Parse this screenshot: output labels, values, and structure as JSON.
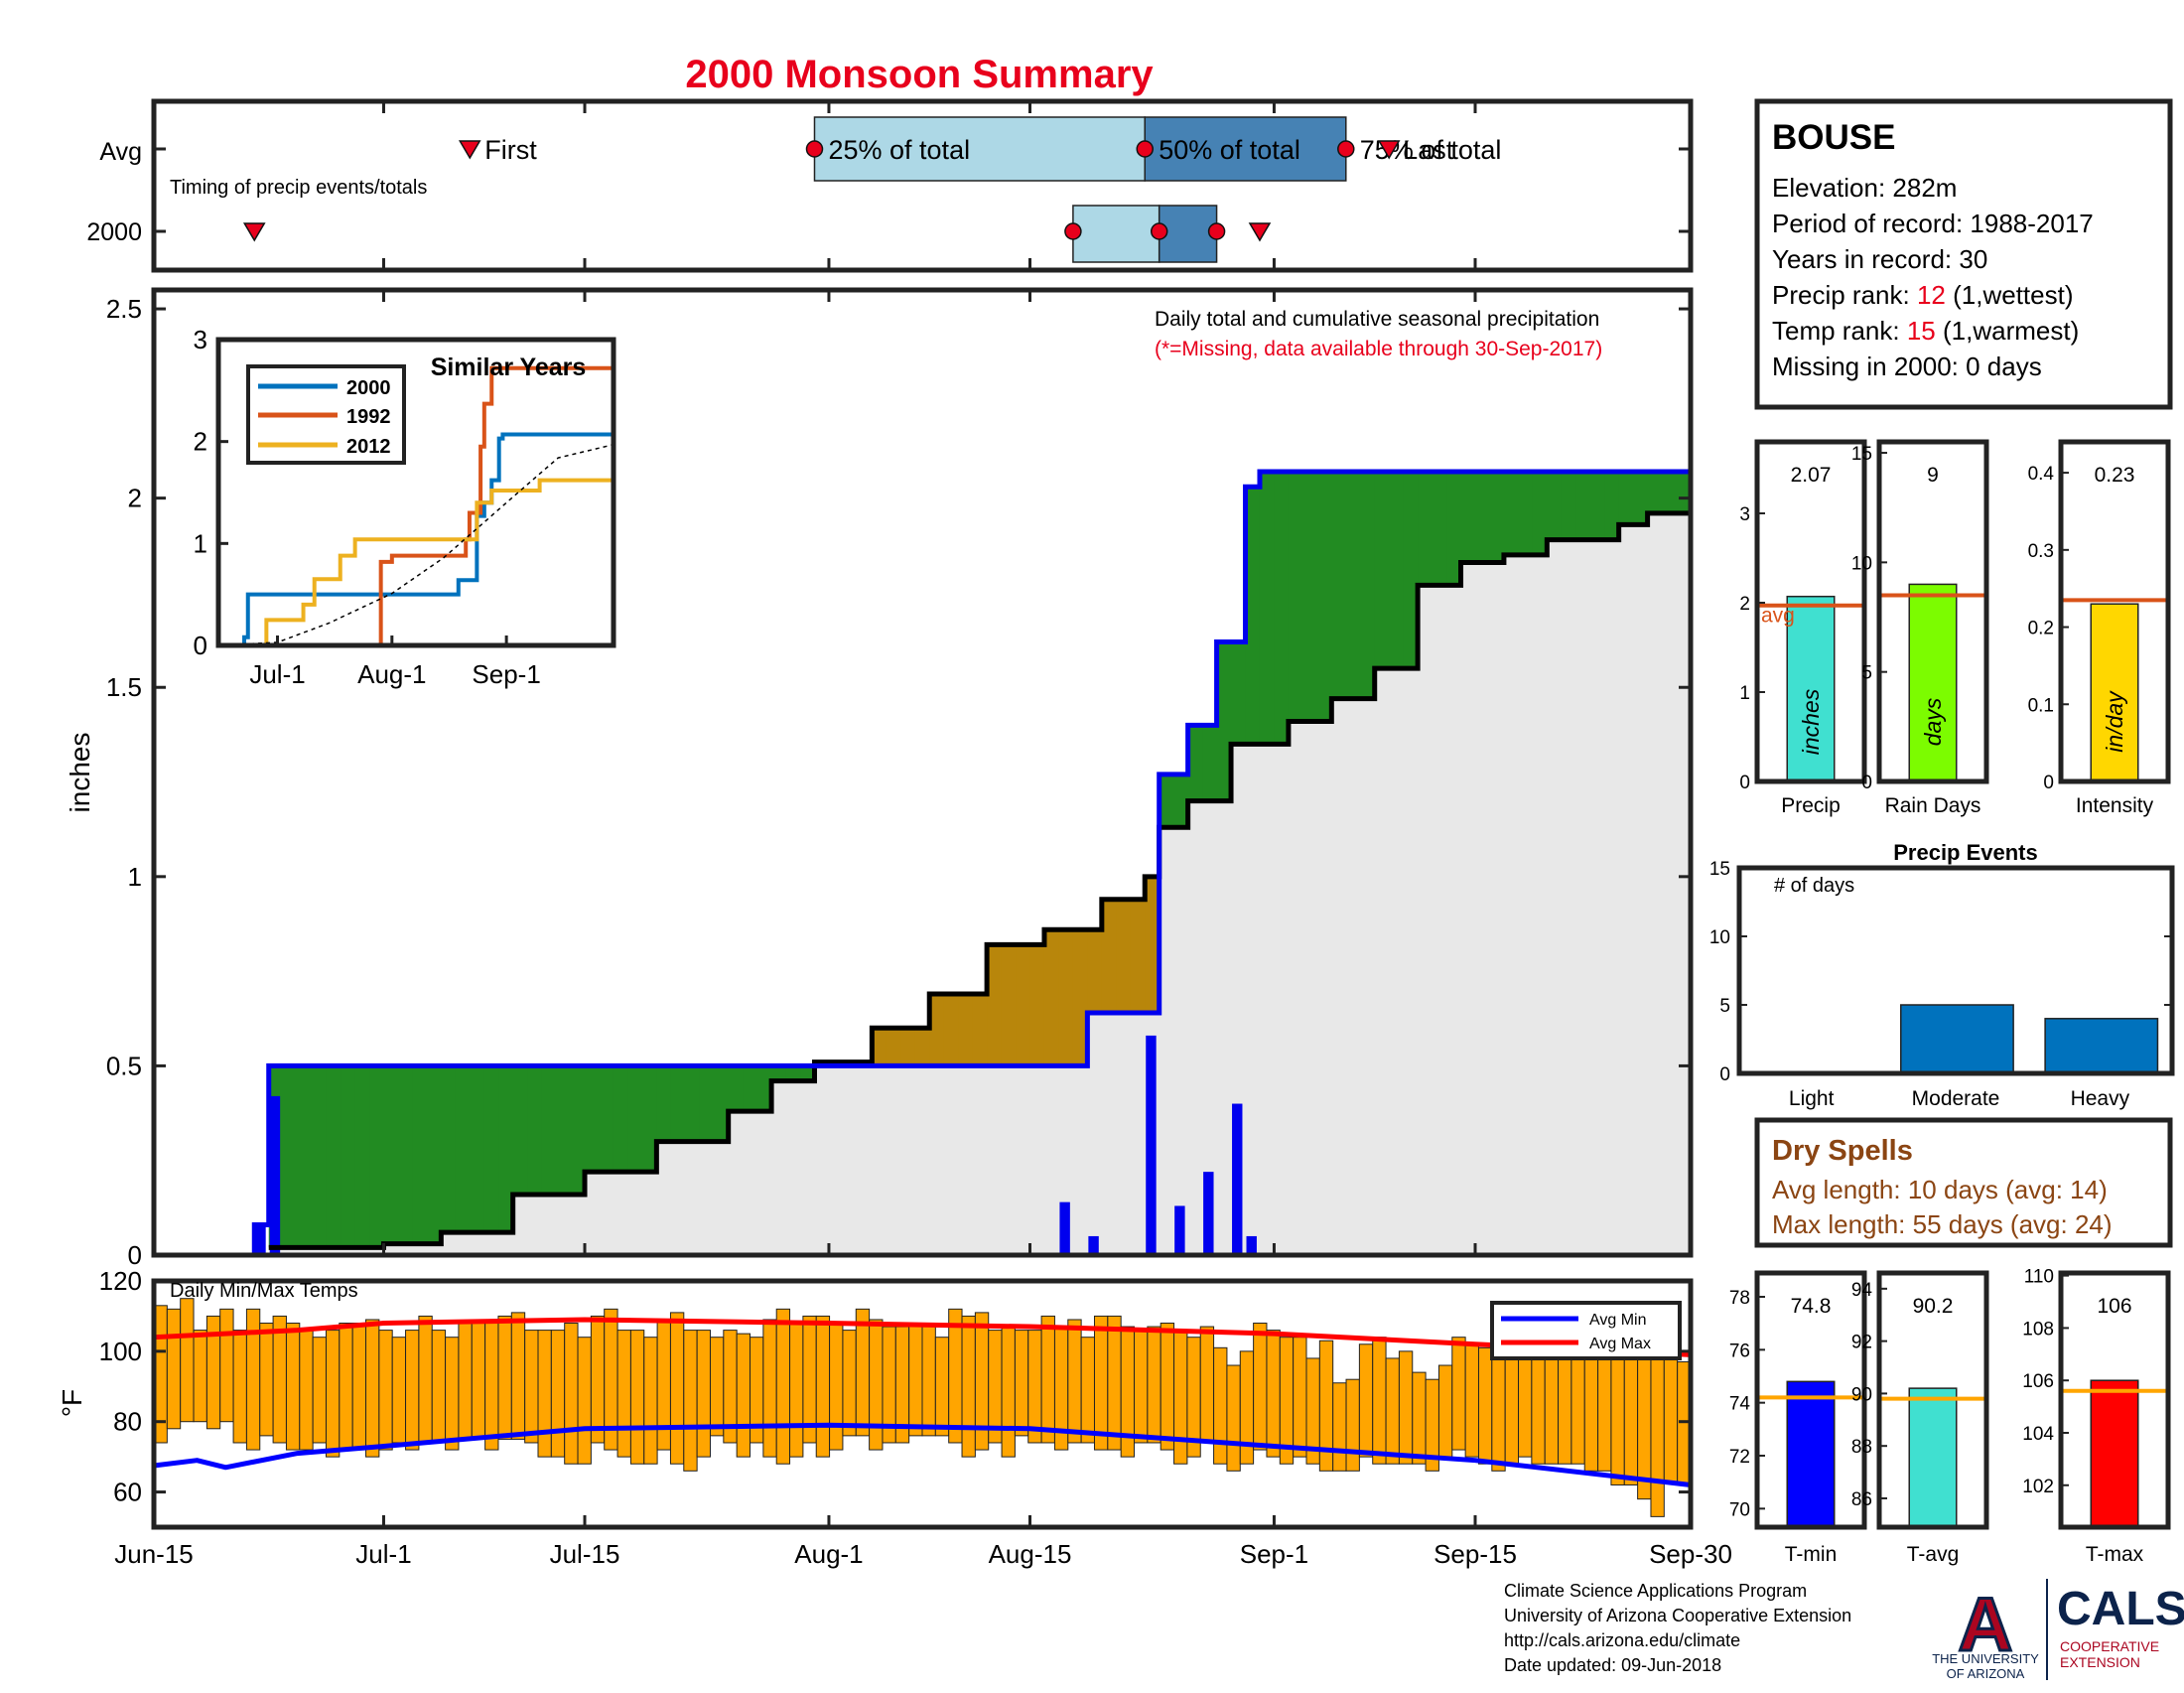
{
  "title": "2000 Monsoon Summary",
  "x_tick_labels": [
    "Jun-15",
    "Jul-1",
    "Jul-15",
    "Aug-1",
    "Aug-15",
    "Sep-1",
    "Sep-15",
    "Sep-30"
  ],
  "timing": {
    "row_labels": [
      "Avg",
      "2000"
    ],
    "caption": "Timing of precip events/totals",
    "avg_labels": {
      "first": "First",
      "p25": "25% of total",
      "p50": "50% of total",
      "p75": "75% of total",
      "last": "Last"
    },
    "avg": {
      "first": "Jul-7",
      "p25": "Jul-31",
      "p50": "Aug-23",
      "p75": "Sep-6",
      "last": "Sep-9"
    },
    "year": {
      "first": "Jun-22",
      "p25": "Aug-18",
      "p50": "Aug-24",
      "p75": "Aug-28",
      "last": "Aug-31"
    }
  },
  "station": {
    "name": "BOUSE",
    "elevation": "Elevation: 282m",
    "period": "Period of record: 1988-2017",
    "years": "Years in record: 30",
    "precip_rank_label": "Precip rank:",
    "precip_rank_value": "12",
    "precip_rank_note": "(1,wettest)",
    "temp_rank_label": "Temp rank:",
    "temp_rank_value": "15",
    "temp_rank_note": "(1,warmest)",
    "missing": "Missing in 2000: 0 days"
  },
  "main_annotations": {
    "line1": "Daily total and cumulative seasonal precipitation",
    "line2": "(*=Missing, data available through 30-Sep-2017)"
  },
  "chart_data": [
    {
      "type": "area",
      "name": "cumulative precipitation",
      "ylabel": "inches",
      "ylim": [
        0,
        2.55
      ],
      "y_ticks": [
        "0",
        "0.5",
        "1",
        "1.5",
        "2",
        "2.5"
      ],
      "x_range": [
        "Jun-15",
        "Sep-30"
      ],
      "cumulative_2000": {
        "dates": [
          "Jun-22",
          "Jun-23",
          "Aug-17",
          "Aug-19",
          "Aug-24",
          "Aug-26",
          "Aug-28",
          "Aug-30",
          "Aug-31"
        ],
        "values": [
          0.08,
          0.5,
          0.5,
          0.64,
          1.27,
          1.4,
          1.62,
          2.03,
          2.07
        ]
      },
      "cumulative_avg": {
        "dates": [
          "Jun-23",
          "Jul-1",
          "Jul-5",
          "Jul-10",
          "Jul-15",
          "Jul-20",
          "Jul-25",
          "Jul-28",
          "Jul-31",
          "Aug-4",
          "Aug-8",
          "Aug-12",
          "Aug-16",
          "Aug-20",
          "Aug-23",
          "Aug-24",
          "Aug-26",
          "Aug-29",
          "Sep-2",
          "Sep-5",
          "Sep-8",
          "Sep-11",
          "Sep-14",
          "Sep-17",
          "Sep-20",
          "Sep-25",
          "Sep-27",
          "Sep-30"
        ],
        "values": [
          0.02,
          0.03,
          0.06,
          0.16,
          0.22,
          0.3,
          0.38,
          0.46,
          0.51,
          0.6,
          0.69,
          0.82,
          0.86,
          0.94,
          1.0,
          1.13,
          1.2,
          1.35,
          1.41,
          1.47,
          1.55,
          1.77,
          1.83,
          1.85,
          1.89,
          1.93,
          1.96,
          1.97
        ]
      },
      "daily_2000": {
        "dates": [
          "Jun-22",
          "Jun-23",
          "Aug-17",
          "Aug-19",
          "Aug-23",
          "Aug-25",
          "Aug-27",
          "Aug-29",
          "Aug-30"
        ],
        "values": [
          0.08,
          0.42,
          0.14,
          0.05,
          0.58,
          0.13,
          0.22,
          0.4,
          0.05
        ]
      },
      "fill_colors": {
        "above_avg": "#228B22",
        "below_avg": "#B8860B",
        "background": "#E8E8E8"
      }
    },
    {
      "type": "line",
      "name": "Similar Years",
      "title": "Similar Years",
      "x_ticks": [
        "Jul-1",
        "Aug-1",
        "Sep-1"
      ],
      "ylim": [
        0,
        3
      ],
      "y_ticks": [
        "0",
        "1",
        "2",
        "3"
      ],
      "series": [
        {
          "name": "2000",
          "color": "#0072BD",
          "dates": [
            "Jun-15",
            "Jun-22",
            "Jun-23",
            "Aug-17",
            "Aug-19",
            "Aug-24",
            "Aug-26",
            "Aug-28",
            "Aug-30",
            "Aug-31",
            "Sep-30"
          ],
          "values": [
            0,
            0.08,
            0.5,
            0.5,
            0.64,
            1.27,
            1.4,
            1.62,
            2.03,
            2.07,
            2.07
          ]
        },
        {
          "name": "1992",
          "color": "#D95319",
          "dates": [
            "Jun-15",
            "Jul-28",
            "Jul-29",
            "Aug-1",
            "Aug-21",
            "Aug-22",
            "Aug-25",
            "Aug-26",
            "Aug-28",
            "Sep-30"
          ],
          "values": [
            0,
            0,
            0.82,
            0.88,
            1.04,
            1.3,
            1.95,
            2.37,
            2.72,
            2.72
          ]
        },
        {
          "name": "2012",
          "color": "#EDB120",
          "dates": [
            "Jun-15",
            "Jun-28",
            "Jul-8",
            "Jul-11",
            "Jul-18",
            "Jul-22",
            "Aug-21",
            "Aug-24",
            "Aug-28",
            "Sep-5",
            "Sep-10",
            "Sep-30"
          ],
          "values": [
            0,
            0.25,
            0.4,
            0.65,
            0.88,
            1.04,
            1.04,
            1.4,
            1.52,
            1.52,
            1.62,
            1.62
          ]
        },
        {
          "name": "average",
          "color": "#000000",
          "dates": [
            "Jun-15",
            "Jul-1",
            "Jul-15",
            "Aug-1",
            "Aug-15",
            "Sep-1",
            "Sep-15",
            "Sep-30"
          ],
          "values": [
            0,
            0.03,
            0.22,
            0.51,
            0.86,
            1.4,
            1.84,
            1.97
          ]
        }
      ]
    },
    {
      "type": "bar",
      "name": "season totals",
      "panels": [
        {
          "category": "Precip",
          "value_label": "2.07",
          "value": 2.07,
          "avg": 1.97,
          "unit": "inches",
          "ylim": [
            0,
            3.8
          ],
          "ticks": [
            "0",
            "1",
            "2",
            "3"
          ],
          "color": "#40E0D0",
          "avg_label": "avg"
        },
        {
          "category": "Rain Days",
          "value_label": "9",
          "value": 9,
          "avg": 8.5,
          "unit": "days",
          "ylim": [
            0,
            15.5
          ],
          "ticks": [
            "0",
            "5",
            "10",
            "15"
          ],
          "color": "#7CFC00"
        },
        {
          "category": "Intensity",
          "value_label": "0.23",
          "value": 0.23,
          "avg": 0.235,
          "unit": "in/day",
          "ylim": [
            0,
            0.44
          ],
          "ticks": [
            "0",
            "0.1",
            "0.2",
            "0.3",
            "0.4"
          ],
          "color": "#FFD700"
        }
      ]
    },
    {
      "type": "bar",
      "name": "Precip Events",
      "title": "Precip Events",
      "ylabel_inside": "# of days",
      "categories": [
        "Light",
        "Moderate",
        "Heavy"
      ],
      "values": [
        0,
        5,
        4
      ],
      "ylim": [
        0,
        15
      ],
      "y_ticks": [
        "0",
        "5",
        "10",
        "15"
      ],
      "color": "#0072BD"
    },
    {
      "type": "bar",
      "name": "Daily Min/Max Temps",
      "title": "Daily Min/Max Temps",
      "ylabel": "°F",
      "ylim": [
        50,
        120
      ],
      "y_ticks": [
        "60",
        "80",
        "100",
        "120"
      ],
      "legend": [
        "Avg Min",
        "Avg Max"
      ],
      "bar_color": "#FFA500",
      "tmax": [
        113,
        112,
        115,
        106,
        110,
        112,
        106,
        112,
        108,
        110,
        108,
        106,
        104,
        106,
        108,
        108,
        109,
        106,
        104,
        106,
        110,
        106,
        104,
        108,
        108,
        108,
        110,
        111,
        106,
        106,
        106,
        108,
        104,
        110,
        112,
        106,
        106,
        104,
        109,
        111,
        106,
        106,
        104,
        106,
        105,
        104,
        109,
        112,
        108,
        110,
        110,
        108,
        106,
        112,
        109,
        107,
        107,
        108,
        108,
        104,
        112,
        110,
        111,
        106,
        107,
        106,
        106,
        110,
        107,
        109,
        104,
        110,
        110,
        107,
        106,
        107,
        108,
        106,
        104,
        107,
        101,
        96,
        100,
        108,
        106,
        104,
        104,
        98,
        103,
        91,
        92,
        102,
        104,
        98,
        100,
        94,
        92,
        96,
        104,
        102,
        101,
        104,
        100,
        103,
        100,
        98,
        103,
        108,
        110,
        104,
        103,
        102,
        100,
        100,
        98,
        97
      ],
      "tmin": [
        74,
        78,
        80,
        80,
        78,
        80,
        74,
        72,
        76,
        74,
        72,
        72,
        74,
        70,
        72,
        72,
        70,
        72,
        74,
        72,
        74,
        74,
        72,
        75,
        75,
        72,
        75,
        75,
        74,
        70,
        70,
        68,
        68,
        74,
        72,
        70,
        68,
        68,
        72,
        68,
        66,
        70,
        76,
        74,
        70,
        74,
        70,
        68,
        70,
        74,
        70,
        72,
        76,
        76,
        72,
        74,
        74,
        76,
        76,
        76,
        74,
        70,
        72,
        74,
        70,
        76,
        74,
        74,
        72,
        74,
        74,
        72,
        72,
        70,
        74,
        74,
        72,
        68,
        70,
        74,
        68,
        66,
        68,
        72,
        70,
        68,
        70,
        68,
        66,
        66,
        66,
        70,
        68,
        68,
        68,
        68,
        66,
        70,
        72,
        70,
        68,
        66,
        68,
        70,
        68,
        68,
        68,
        68,
        66,
        66,
        62,
        62,
        58,
        53,
        63,
        62
      ],
      "avg_min": {
        "dates": [
          "Jun-15",
          "Jun-18",
          "Jun-20",
          "Jun-25",
          "Jul-1",
          "Jul-15",
          "Aug-1",
          "Aug-15",
          "Sep-1",
          "Sep-15",
          "Sep-30"
        ],
        "values": [
          67.5,
          69,
          67,
          71,
          73,
          78,
          79,
          78,
          73,
          69,
          62
        ]
      },
      "avg_max": {
        "dates": [
          "Jun-15",
          "Jun-25",
          "Jul-1",
          "Jul-15",
          "Aug-1",
          "Aug-15",
          "Sep-1",
          "Sep-15",
          "Sep-30"
        ],
        "values": [
          104,
          106,
          108,
          109,
          108,
          107,
          105,
          102,
          99
        ]
      },
      "avg_min_color": "#0000FF",
      "avg_max_color": "#FF0000"
    },
    {
      "type": "bar",
      "name": "season temperature averages",
      "panels": [
        {
          "category": "T-min",
          "value_label": "74.8",
          "value": 74.8,
          "avg": 74.2,
          "ylim": [
            69.3,
            78.9
          ],
          "ticks": [
            "70",
            "72",
            "74",
            "76",
            "78"
          ],
          "color": "#0000FF"
        },
        {
          "category": "T-avg",
          "value_label": "90.2",
          "value": 90.2,
          "avg": 89.8,
          "ylim": [
            84.9,
            94.6
          ],
          "ticks": [
            "86",
            "88",
            "90",
            "92",
            "94"
          ],
          "color": "#40E0D0"
        },
        {
          "category": "T-max",
          "value_label": "106",
          "value": 106,
          "avg": 105.6,
          "ylim": [
            100.4,
            110.1
          ],
          "ticks": [
            "102",
            "104",
            "106",
            "108",
            "110"
          ],
          "color": "#FF0000"
        }
      ]
    }
  ],
  "dry_spells": {
    "title": "Dry Spells",
    "avg_length": "Avg length: 10 days (avg: 14)",
    "max_length": "Max length: 55 days (avg: 24)"
  },
  "footer": {
    "line1": "Climate Science Applications Program",
    "line2": "University of Arizona Cooperative Extension",
    "line3": "http://cals.arizona.edu/climate",
    "line4": "Date updated: 09-Jun-2018"
  },
  "logos": {
    "ua_mark": "A",
    "ua_text1": "THE UNIVERSITY",
    "ua_text2": "OF ARIZONA",
    "cals": "CALS",
    "cals_sub1": "COOPERATIVE",
    "cals_sub2": "EXTENSION"
  }
}
